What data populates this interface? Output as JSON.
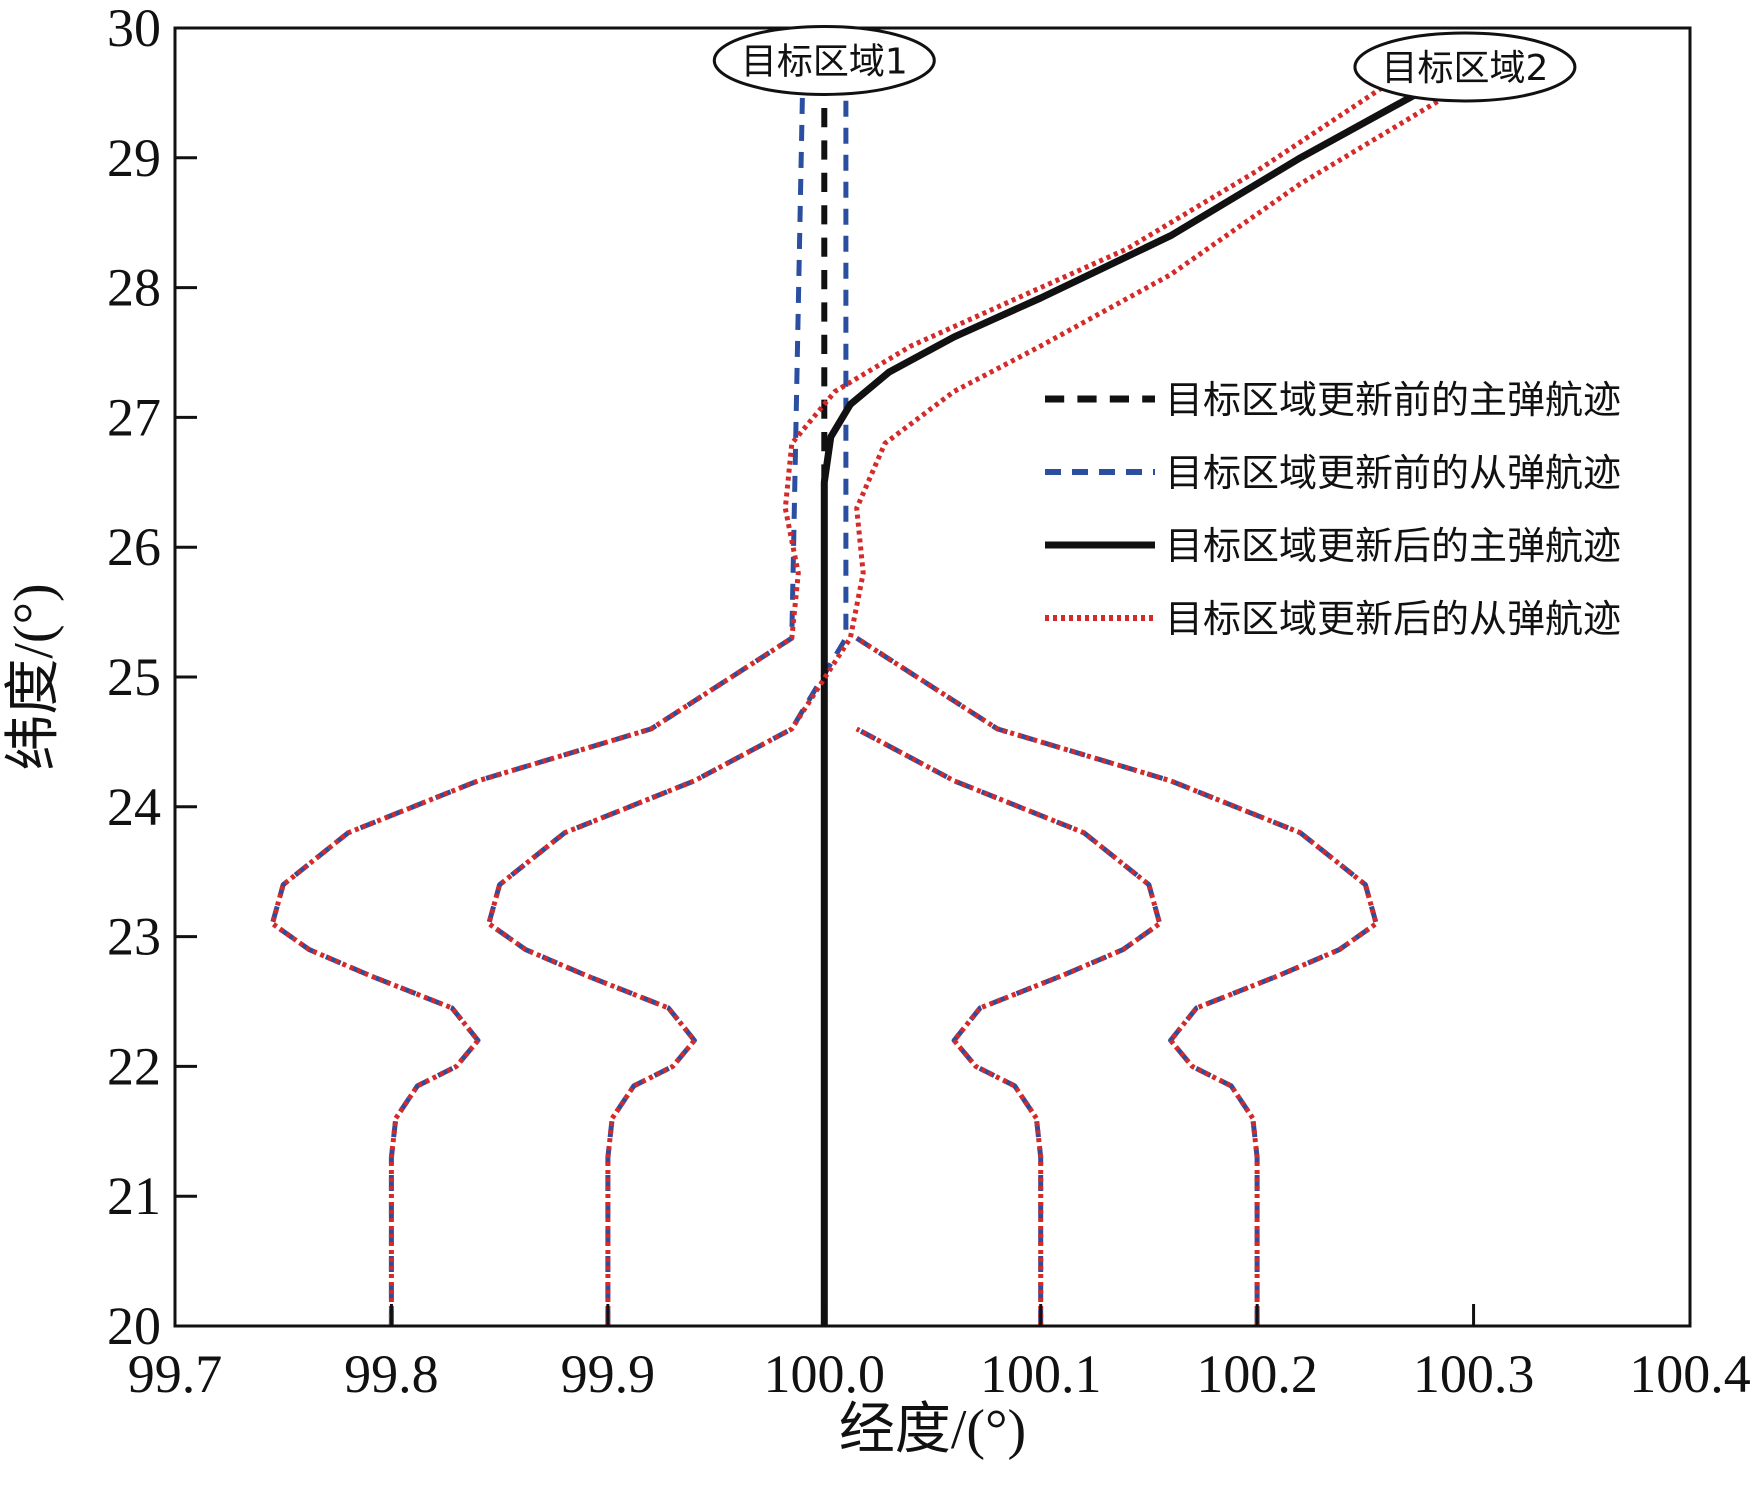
{
  "chart_data": {
    "type": "line",
    "xlabel": "经度/(°)",
    "ylabel": "纬度/(°)",
    "xlim": [
      99.7,
      100.4
    ],
    "ylim": [
      20,
      30
    ],
    "xticks": [
      "99.7",
      "99.8",
      "99.9",
      "100.0",
      "100.1",
      "100.2",
      "100.3",
      "100.4"
    ],
    "yticks": [
      "20",
      "21",
      "22",
      "23",
      "24",
      "25",
      "26",
      "27",
      "28",
      "29",
      "30"
    ],
    "grid": false,
    "legend_position": "right",
    "annotations": [
      {
        "text": "目标区域1",
        "x": 100.0,
        "y": 29.75
      },
      {
        "text": "目标区域2",
        "x": 100.296,
        "y": 29.7
      }
    ],
    "series": [
      {
        "name": "目标区域更新前的主弹航迹",
        "color": "#111111",
        "style": "dashed",
        "width": 6,
        "lines": [
          {
            "x": [
              100.0,
              100.0
            ],
            "y": [
              20,
              29.55
            ]
          }
        ]
      },
      {
        "name": "目标区域更新前的从弹航迹",
        "color": "#2a4ea0",
        "style": "dashed",
        "width": 5,
        "lines": [
          {
            "x": [
              99.8,
              99.8,
              99.802,
              99.812,
              99.83,
              99.84,
              99.828,
              99.79,
              99.762,
              99.745,
              99.75,
              99.78,
              99.84,
              99.92,
              99.985,
              99.99
            ],
            "y": [
              20,
              21.3,
              21.6,
              21.85,
              22.0,
              22.2,
              22.45,
              22.7,
              22.9,
              23.1,
              23.4,
              23.8,
              24.2,
              24.6,
              25.3,
              29.55
            ]
          },
          {
            "x": [
              99.9,
              99.9,
              99.902,
              99.912,
              99.93,
              99.94,
              99.928,
              99.89,
              99.862,
              99.845,
              99.85,
              99.88,
              99.94,
              99.985,
              100.01,
              100.01
            ],
            "y": [
              20,
              21.3,
              21.6,
              21.85,
              22.0,
              22.2,
              22.45,
              22.7,
              22.9,
              23.1,
              23.4,
              23.8,
              24.2,
              24.6,
              25.3,
              29.55
            ]
          },
          {
            "x": [
              100.1,
              100.1,
              100.098,
              100.088,
              100.07,
              100.06,
              100.072,
              100.11,
              100.138,
              100.155,
              100.15,
              100.12,
              100.06,
              100.015
            ],
            "y": [
              20,
              21.3,
              21.6,
              21.85,
              22.0,
              22.2,
              22.45,
              22.7,
              22.9,
              23.1,
              23.4,
              23.8,
              24.2,
              24.6
            ]
          },
          {
            "x": [
              100.2,
              100.2,
              100.198,
              100.188,
              100.17,
              100.16,
              100.172,
              100.21,
              100.238,
              100.255,
              100.25,
              100.22,
              100.16,
              100.08,
              100.015
            ],
            "y": [
              20,
              21.3,
              21.6,
              21.85,
              22.0,
              22.2,
              22.45,
              22.7,
              22.9,
              23.1,
              23.4,
              23.8,
              24.2,
              24.6,
              25.3
            ]
          }
        ]
      },
      {
        "name": "目标区域更新后的主弹航迹",
        "color": "#111111",
        "style": "solid",
        "width": 7,
        "lines": [
          {
            "x": [
              100.0,
              100.0,
              100.003,
              100.012,
              100.03,
              100.06,
              100.1,
              100.16,
              100.22,
              100.28
            ],
            "y": [
              20,
              26.5,
              26.85,
              27.1,
              27.35,
              27.62,
              27.92,
              28.4,
              29.0,
              29.55
            ]
          }
        ]
      },
      {
        "name": "目标区域更新后的从弹航迹",
        "color": "#d42a2a",
        "style": "dotted",
        "width": 5,
        "lines": [
          {
            "x": [
              99.8,
              99.8,
              99.802,
              99.812,
              99.83,
              99.84,
              99.828,
              99.79,
              99.762,
              99.745,
              99.75,
              99.78,
              99.84,
              99.92,
              99.985,
              99.988,
              99.982,
              99.985,
              100.005,
              100.04,
              100.08,
              100.14,
              100.2,
              100.265
            ],
            "y": [
              20,
              21.3,
              21.6,
              21.85,
              22.0,
              22.2,
              22.45,
              22.7,
              22.9,
              23.1,
              23.4,
              23.8,
              24.2,
              24.6,
              25.3,
              25.8,
              26.3,
              26.8,
              27.2,
              27.55,
              27.85,
              28.3,
              28.9,
              29.62
            ]
          },
          {
            "x": [
              99.9,
              99.9,
              99.902,
              99.912,
              99.93,
              99.94,
              99.928,
              99.89,
              99.862,
              99.845,
              99.85,
              99.88,
              99.94,
              99.985,
              100.012,
              100.018,
              100.015,
              100.028,
              100.06,
              100.1,
              100.16,
              100.22,
              100.29
            ],
            "y": [
              20,
              21.3,
              21.6,
              21.85,
              22.0,
              22.2,
              22.45,
              22.7,
              22.9,
              23.1,
              23.4,
              23.8,
              24.2,
              24.6,
              25.3,
              25.8,
              26.3,
              26.8,
              27.2,
              27.55,
              28.1,
              28.8,
              29.5
            ]
          },
          {
            "x": [
              100.1,
              100.1,
              100.098,
              100.088,
              100.07,
              100.06,
              100.072,
              100.11,
              100.138,
              100.155,
              100.15,
              100.12,
              100.06,
              100.015
            ],
            "y": [
              20,
              21.3,
              21.6,
              21.85,
              22.0,
              22.2,
              22.45,
              22.7,
              22.9,
              23.1,
              23.4,
              23.8,
              24.2,
              24.6
            ]
          },
          {
            "x": [
              100.2,
              100.2,
              100.198,
              100.188,
              100.17,
              100.16,
              100.172,
              100.21,
              100.238,
              100.255,
              100.25,
              100.22,
              100.16,
              100.08,
              100.015
            ],
            "y": [
              20,
              21.3,
              21.6,
              21.85,
              22.0,
              22.2,
              22.45,
              22.7,
              22.9,
              23.1,
              23.4,
              23.8,
              24.2,
              24.6,
              25.3
            ]
          }
        ]
      }
    ]
  }
}
